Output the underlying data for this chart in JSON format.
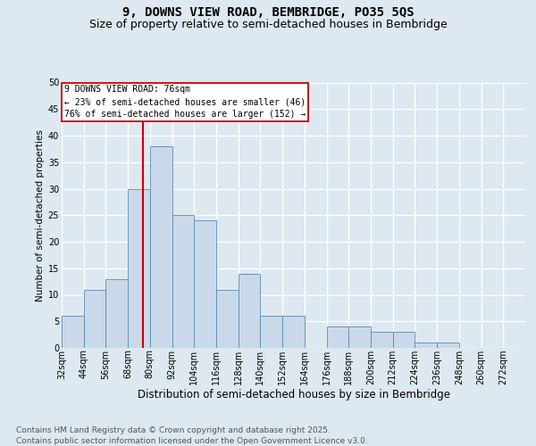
{
  "title1": "9, DOWNS VIEW ROAD, BEMBRIDGE, PO35 5QS",
  "title2": "Size of property relative to semi-detached houses in Bembridge",
  "xlabel": "Distribution of semi-detached houses by size in Bembridge",
  "ylabel": "Number of semi-detached properties",
  "bin_labels": [
    "32sqm",
    "44sqm",
    "56sqm",
    "68sqm",
    "80sqm",
    "92sqm",
    "104sqm",
    "116sqm",
    "128sqm",
    "140sqm",
    "152sqm",
    "164sqm",
    "176sqm",
    "188sqm",
    "200sqm",
    "212sqm",
    "224sqm",
    "236sqm",
    "248sqm",
    "260sqm",
    "272sqm"
  ],
  "bin_left_edges": [
    32,
    44,
    56,
    68,
    80,
    92,
    104,
    116,
    128,
    140,
    152,
    164,
    176,
    188,
    200,
    212,
    224,
    236,
    248,
    260,
    272
  ],
  "bar_heights": [
    6,
    11,
    13,
    30,
    38,
    25,
    24,
    11,
    14,
    6,
    6,
    0,
    4,
    4,
    3,
    3,
    1,
    1,
    0,
    0,
    0
  ],
  "bar_color": "#c9d9ea",
  "bar_edge_color": "#5a8ab0",
  "background_color": "#dde8f0",
  "grid_color": "#ffffff",
  "property_sqm": 76,
  "property_line_color": "#cc0000",
  "annotation_lines": [
    "9 DOWNS VIEW ROAD: 76sqm",
    "← 23% of semi-detached houses are smaller (46)",
    "76% of semi-detached houses are larger (152) →"
  ],
  "annotation_box_facecolor": "#ffffff",
  "annotation_box_edgecolor": "#cc0000",
  "ylim_max": 50,
  "yticks": [
    0,
    5,
    10,
    15,
    20,
    25,
    30,
    35,
    40,
    45,
    50
  ],
  "footnote": "Contains HM Land Registry data © Crown copyright and database right 2025.\nContains public sector information licensed under the Open Government Licence v3.0.",
  "title1_fontsize": 10,
  "title2_fontsize": 9,
  "xlabel_fontsize": 8.5,
  "ylabel_fontsize": 7.5,
  "footnote_fontsize": 6.5,
  "tick_fontsize": 7,
  "annotation_fontsize": 7
}
